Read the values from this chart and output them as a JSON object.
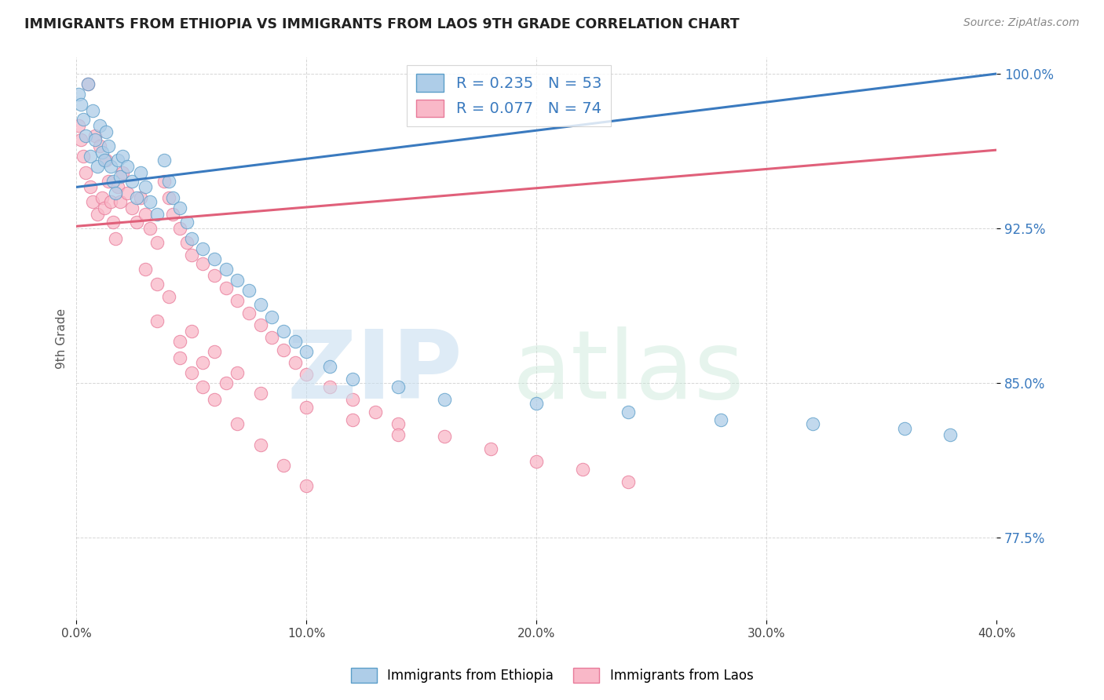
{
  "title": "IMMIGRANTS FROM ETHIOPIA VS IMMIGRANTS FROM LAOS 9TH GRADE CORRELATION CHART",
  "source": "Source: ZipAtlas.com",
  "ylabel": "9th Grade",
  "xmin": 0.0,
  "xmax": 0.4,
  "ymin": 0.735,
  "ymax": 1.008,
  "legend_r1": "R = 0.235",
  "legend_n1": "N = 53",
  "legend_r2": "R = 0.077",
  "legend_n2": "N = 74",
  "legend_label1": "Immigrants from Ethiopia",
  "legend_label2": "Immigrants from Laos",
  "blue_fill": "#aecde8",
  "blue_edge": "#5b9ec9",
  "pink_fill": "#f9b8c8",
  "pink_edge": "#e87a99",
  "blue_line_color": "#3a7abf",
  "pink_line_color": "#e0607a",
  "blue_line_y0": 0.945,
  "blue_line_y1": 1.0,
  "pink_line_y0": 0.926,
  "pink_line_y1": 0.963,
  "blue_scatter_x": [
    0.001,
    0.002,
    0.003,
    0.004,
    0.005,
    0.006,
    0.007,
    0.008,
    0.009,
    0.01,
    0.011,
    0.012,
    0.013,
    0.014,
    0.015,
    0.016,
    0.017,
    0.018,
    0.019,
    0.02,
    0.022,
    0.024,
    0.026,
    0.028,
    0.03,
    0.032,
    0.035,
    0.038,
    0.04,
    0.042,
    0.045,
    0.048,
    0.05,
    0.055,
    0.06,
    0.065,
    0.07,
    0.075,
    0.08,
    0.085,
    0.09,
    0.095,
    0.1,
    0.11,
    0.12,
    0.14,
    0.16,
    0.2,
    0.24,
    0.28,
    0.32,
    0.36,
    0.38
  ],
  "blue_scatter_y": [
    0.99,
    0.985,
    0.978,
    0.97,
    0.995,
    0.96,
    0.982,
    0.968,
    0.955,
    0.975,
    0.962,
    0.958,
    0.972,
    0.965,
    0.955,
    0.948,
    0.942,
    0.958,
    0.95,
    0.96,
    0.955,
    0.948,
    0.94,
    0.952,
    0.945,
    0.938,
    0.932,
    0.958,
    0.948,
    0.94,
    0.935,
    0.928,
    0.92,
    0.915,
    0.91,
    0.905,
    0.9,
    0.895,
    0.888,
    0.882,
    0.875,
    0.87,
    0.865,
    0.858,
    0.852,
    0.848,
    0.842,
    0.84,
    0.836,
    0.832,
    0.83,
    0.828,
    0.825
  ],
  "pink_scatter_x": [
    0.001,
    0.002,
    0.003,
    0.004,
    0.005,
    0.006,
    0.007,
    0.008,
    0.009,
    0.01,
    0.011,
    0.012,
    0.013,
    0.014,
    0.015,
    0.016,
    0.017,
    0.018,
    0.019,
    0.02,
    0.022,
    0.024,
    0.026,
    0.028,
    0.03,
    0.032,
    0.035,
    0.038,
    0.04,
    0.042,
    0.045,
    0.048,
    0.05,
    0.055,
    0.06,
    0.065,
    0.07,
    0.075,
    0.08,
    0.085,
    0.09,
    0.095,
    0.1,
    0.11,
    0.12,
    0.13,
    0.14,
    0.16,
    0.18,
    0.2,
    0.22,
    0.24,
    0.03,
    0.035,
    0.04,
    0.045,
    0.05,
    0.055,
    0.06,
    0.07,
    0.08,
    0.09,
    0.1,
    0.05,
    0.06,
    0.07,
    0.08,
    0.1,
    0.12,
    0.14,
    0.035,
    0.045,
    0.055,
    0.065
  ],
  "pink_scatter_y": [
    0.975,
    0.968,
    0.96,
    0.952,
    0.995,
    0.945,
    0.938,
    0.97,
    0.932,
    0.965,
    0.94,
    0.935,
    0.958,
    0.948,
    0.938,
    0.928,
    0.92,
    0.945,
    0.938,
    0.952,
    0.942,
    0.935,
    0.928,
    0.94,
    0.932,
    0.925,
    0.918,
    0.948,
    0.94,
    0.932,
    0.925,
    0.918,
    0.912,
    0.908,
    0.902,
    0.896,
    0.89,
    0.884,
    0.878,
    0.872,
    0.866,
    0.86,
    0.854,
    0.848,
    0.842,
    0.836,
    0.83,
    0.824,
    0.818,
    0.812,
    0.808,
    0.802,
    0.905,
    0.898,
    0.892,
    0.862,
    0.855,
    0.848,
    0.842,
    0.83,
    0.82,
    0.81,
    0.8,
    0.875,
    0.865,
    0.855,
    0.845,
    0.838,
    0.832,
    0.825,
    0.88,
    0.87,
    0.86,
    0.85
  ]
}
